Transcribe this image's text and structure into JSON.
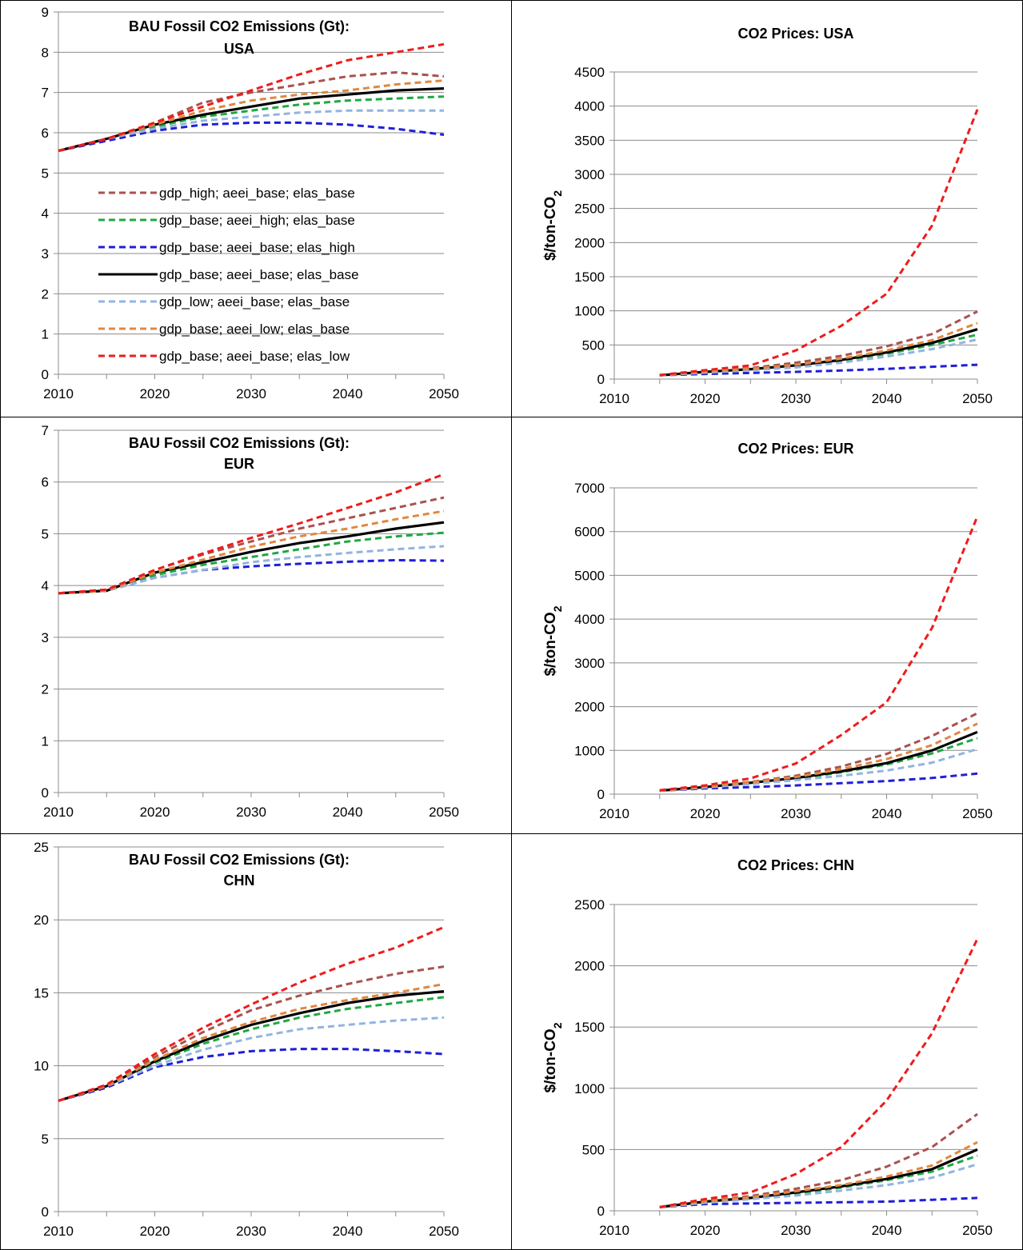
{
  "series_styles": [
    {
      "key": "gdp_high",
      "color": "#a8524f",
      "dash": true
    },
    {
      "key": "aeei_high",
      "color": "#1fa843",
      "dash": true
    },
    {
      "key": "elas_high",
      "color": "#1f1fd8",
      "dash": true
    },
    {
      "key": "base",
      "color": "#000000",
      "dash": false
    },
    {
      "key": "gdp_low",
      "color": "#92b4e0",
      "dash": true
    },
    {
      "key": "aeei_low",
      "color": "#e0883e",
      "dash": true
    },
    {
      "key": "elas_low",
      "color": "#ee1c1c",
      "dash": true
    }
  ],
  "chart_data": [
    {
      "id": "em-usa",
      "type": "line",
      "title": [
        "BAU Fossil CO2 Emissions (Gt):",
        "USA"
      ],
      "ylabel": "",
      "ylim": [
        0,
        9
      ],
      "ytick_step": 1,
      "grid": true,
      "legend_position": "left",
      "x": [
        2010,
        2015,
        2020,
        2025,
        2030,
        2035,
        2040,
        2045,
        2050
      ],
      "xticks": [
        2010,
        2020,
        2030,
        2040,
        2050
      ],
      "series": [
        {
          "name": "gdp_high;  aeei_base;  elas_base",
          "style": 0,
          "values": [
            5.55,
            5.85,
            6.25,
            6.75,
            7.0,
            7.2,
            7.4,
            7.5,
            7.4
          ]
        },
        {
          "name": "gdp_base;  aeei_high;  elas_base",
          "style": 1,
          "values": [
            5.55,
            5.85,
            6.15,
            6.4,
            6.55,
            6.7,
            6.8,
            6.85,
            6.9
          ]
        },
        {
          "name": "gdp_base;  aeei_base;  elas_high",
          "style": 2,
          "values": [
            5.55,
            5.8,
            6.05,
            6.2,
            6.25,
            6.25,
            6.2,
            6.1,
            5.95
          ]
        },
        {
          "name": "gdp_base;  aeei_base;  elas_base",
          "style": 3,
          "values": [
            5.55,
            5.85,
            6.2,
            6.45,
            6.65,
            6.85,
            6.95,
            7.05,
            7.1
          ]
        },
        {
          "name": "gdp_low;  aeei_base;  elas_base",
          "style": 4,
          "values": [
            5.55,
            5.85,
            6.1,
            6.3,
            6.4,
            6.5,
            6.55,
            6.55,
            6.55
          ]
        },
        {
          "name": "gdp_base;  aeei_low;  elas_base",
          "style": 5,
          "values": [
            5.55,
            5.85,
            6.2,
            6.55,
            6.8,
            6.95,
            7.05,
            7.2,
            7.3
          ]
        },
        {
          "name": "gdp_base;  aeei_base;  elas_low",
          "style": 6,
          "values": [
            5.55,
            5.85,
            6.25,
            6.65,
            7.05,
            7.45,
            7.8,
            8.0,
            8.2
          ]
        }
      ]
    },
    {
      "id": "pr-usa",
      "type": "line",
      "title": [
        "CO2 Prices: USA"
      ],
      "ylabel": "$/ton-CO2",
      "ylim": [
        0,
        4500
      ],
      "ytick_step": 500,
      "grid": true,
      "x": [
        2015,
        2020,
        2025,
        2030,
        2035,
        2040,
        2045,
        2050
      ],
      "xticks": [
        2010,
        2020,
        2030,
        2040,
        2050
      ],
      "series": [
        {
          "style": 0,
          "values": [
            55,
            110,
            160,
            240,
            340,
            480,
            660,
            990
          ]
        },
        {
          "style": 1,
          "values": [
            55,
            100,
            140,
            190,
            270,
            370,
            500,
            650
          ]
        },
        {
          "style": 2,
          "values": [
            55,
            75,
            90,
            105,
            125,
            150,
            180,
            210
          ]
        },
        {
          "style": 3,
          "values": [
            55,
            105,
            145,
            200,
            280,
            390,
            530,
            730
          ]
        },
        {
          "style": 4,
          "values": [
            55,
            95,
            130,
            170,
            240,
            330,
            440,
            580
          ]
        },
        {
          "style": 5,
          "values": [
            55,
            110,
            150,
            210,
            300,
            420,
            570,
            820
          ]
        },
        {
          "style": 6,
          "values": [
            60,
            130,
            200,
            420,
            780,
            1250,
            2250,
            3950
          ]
        }
      ]
    },
    {
      "id": "em-eur",
      "type": "line",
      "title": [
        "BAU Fossil CO2 Emissions (Gt):",
        "EUR"
      ],
      "ylabel": "",
      "ylim": [
        0,
        7
      ],
      "ytick_step": 1,
      "grid": true,
      "x": [
        2010,
        2015,
        2020,
        2025,
        2030,
        2035,
        2040,
        2045,
        2050
      ],
      "xticks": [
        2010,
        2020,
        2030,
        2040,
        2050
      ],
      "series": [
        {
          "style": 0,
          "values": [
            3.85,
            3.92,
            4.3,
            4.6,
            4.85,
            5.1,
            5.3,
            5.5,
            5.7
          ]
        },
        {
          "style": 1,
          "values": [
            3.85,
            3.9,
            4.2,
            4.4,
            4.55,
            4.7,
            4.85,
            4.95,
            5.02
          ]
        },
        {
          "style": 2,
          "values": [
            3.85,
            3.9,
            4.15,
            4.3,
            4.37,
            4.42,
            4.46,
            4.49,
            4.48
          ]
        },
        {
          "style": 3,
          "values": [
            3.85,
            3.9,
            4.25,
            4.45,
            4.65,
            4.82,
            4.95,
            5.1,
            5.22
          ]
        },
        {
          "style": 4,
          "values": [
            3.85,
            3.9,
            4.15,
            4.3,
            4.45,
            4.55,
            4.63,
            4.7,
            4.76
          ]
        },
        {
          "style": 5,
          "values": [
            3.85,
            3.9,
            4.25,
            4.5,
            4.75,
            4.95,
            5.1,
            5.28,
            5.44
          ]
        },
        {
          "style": 6,
          "values": [
            3.85,
            3.92,
            4.3,
            4.62,
            4.92,
            5.2,
            5.5,
            5.8,
            6.15
          ]
        }
      ]
    },
    {
      "id": "pr-eur",
      "type": "line",
      "title": [
        "CO2 Prices: EUR"
      ],
      "ylabel": "$/ton-CO2",
      "ylim": [
        0,
        7000
      ],
      "ytick_step": 1000,
      "grid": true,
      "x": [
        2015,
        2020,
        2025,
        2030,
        2035,
        2040,
        2045,
        2050
      ],
      "xticks": [
        2010,
        2020,
        2030,
        2040,
        2050
      ],
      "series": [
        {
          "style": 0,
          "values": [
            80,
            180,
            280,
            420,
            630,
            920,
            1330,
            1850
          ]
        },
        {
          "style": 1,
          "values": [
            80,
            160,
            250,
            350,
            500,
            680,
            930,
            1280
          ]
        },
        {
          "style": 2,
          "values": [
            80,
            130,
            160,
            200,
            250,
            300,
            370,
            470
          ]
        },
        {
          "style": 3,
          "values": [
            80,
            160,
            260,
            370,
            520,
            710,
            1000,
            1420
          ]
        },
        {
          "style": 4,
          "values": [
            80,
            150,
            230,
            320,
            420,
            540,
            720,
            1030
          ]
        },
        {
          "style": 5,
          "values": [
            80,
            170,
            270,
            390,
            570,
            800,
            1120,
            1610
          ]
        },
        {
          "style": 6,
          "values": [
            90,
            200,
            360,
            700,
            1350,
            2100,
            3800,
            6350
          ]
        }
      ]
    },
    {
      "id": "em-chn",
      "type": "line",
      "title": [
        "BAU Fossil CO2 Emissions (Gt):",
        "CHN"
      ],
      "ylabel": "",
      "ylim": [
        0,
        25
      ],
      "ytick_step": 5,
      "grid": true,
      "x": [
        2010,
        2015,
        2020,
        2025,
        2030,
        2035,
        2040,
        2045,
        2050
      ],
      "xticks": [
        2010,
        2020,
        2030,
        2040,
        2050
      ],
      "series": [
        {
          "style": 0,
          "values": [
            7.6,
            8.7,
            10.6,
            12.3,
            13.8,
            14.8,
            15.6,
            16.3,
            16.8
          ]
        },
        {
          "style": 1,
          "values": [
            7.6,
            8.6,
            10.2,
            11.5,
            12.5,
            13.3,
            13.9,
            14.3,
            14.7
          ]
        },
        {
          "style": 2,
          "values": [
            7.6,
            8.5,
            9.9,
            10.6,
            11.0,
            11.15,
            11.15,
            11.0,
            10.8
          ]
        },
        {
          "style": 3,
          "values": [
            7.6,
            8.6,
            10.3,
            11.7,
            12.8,
            13.6,
            14.3,
            14.8,
            15.1
          ]
        },
        {
          "style": 4,
          "values": [
            7.6,
            8.6,
            10.0,
            11.1,
            11.9,
            12.5,
            12.8,
            13.1,
            13.3
          ]
        },
        {
          "style": 5,
          "values": [
            7.6,
            8.6,
            10.4,
            11.9,
            13.0,
            13.9,
            14.5,
            15.0,
            15.6
          ]
        },
        {
          "style": 6,
          "values": [
            7.6,
            8.7,
            10.8,
            12.6,
            14.2,
            15.7,
            17.0,
            18.1,
            19.5
          ]
        }
      ]
    },
    {
      "id": "pr-chn",
      "type": "line",
      "title": [
        "CO2 Prices: CHN"
      ],
      "ylabel": "$/ton-CO2",
      "ylim": [
        0,
        2500
      ],
      "ytick_step": 500,
      "grid": true,
      "x": [
        2015,
        2020,
        2025,
        2030,
        2035,
        2040,
        2045,
        2050
      ],
      "xticks": [
        2010,
        2020,
        2030,
        2040,
        2050
      ],
      "series": [
        {
          "style": 0,
          "values": [
            30,
            80,
            120,
            180,
            250,
            360,
            520,
            790
          ]
        },
        {
          "style": 1,
          "values": [
            30,
            70,
            100,
            140,
            190,
            250,
            320,
            450
          ]
        },
        {
          "style": 2,
          "values": [
            30,
            55,
            60,
            65,
            70,
            75,
            90,
            105
          ]
        },
        {
          "style": 3,
          "values": [
            30,
            75,
            105,
            150,
            200,
            260,
            340,
            500
          ]
        },
        {
          "style": 4,
          "values": [
            30,
            65,
            95,
            125,
            165,
            210,
            270,
            380
          ]
        },
        {
          "style": 5,
          "values": [
            30,
            78,
            110,
            160,
            210,
            280,
            370,
            560
          ]
        },
        {
          "style": 6,
          "values": [
            30,
            95,
            150,
            300,
            520,
            900,
            1450,
            2220
          ]
        }
      ]
    }
  ]
}
